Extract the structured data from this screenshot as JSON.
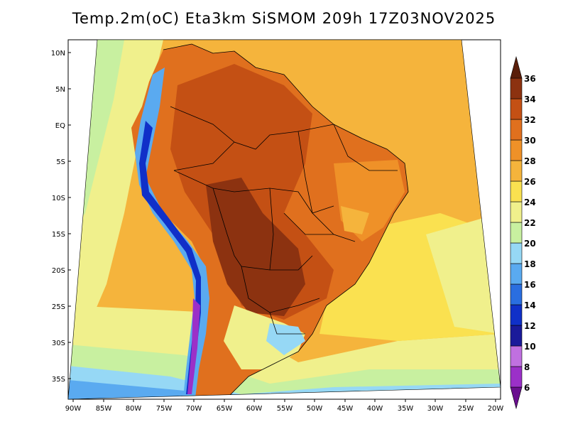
{
  "title": "Temp.2m(oC) Eta3km SiSMOM 209h 17Z03NOV2025",
  "lat_labels": [
    "10N",
    "5N",
    "EQ",
    "5S",
    "10S",
    "15S",
    "20S",
    "25S",
    "30S",
    "35S"
  ],
  "lon_labels": [
    "90W",
    "85W",
    "80W",
    "75W",
    "70W",
    "65W",
    "60W",
    "55W",
    "50W",
    "45W",
    "40W",
    "35W",
    "30W",
    "25W",
    "20W"
  ],
  "colorbar": {
    "labels": [
      "6",
      "8",
      "10",
      "12",
      "14",
      "16",
      "18",
      "20",
      "22",
      "24",
      "26",
      "28",
      "30",
      "32",
      "34",
      "36"
    ],
    "colors": [
      "#6a0f8f",
      "#9b30c8",
      "#c070e0",
      "#1a1a9a",
      "#1030c8",
      "#2a6ee0",
      "#5aaaf0",
      "#96d8f5",
      "#c8f0a0",
      "#f0f08c",
      "#fae150",
      "#f5b43c",
      "#ef9128",
      "#e0701e",
      "#c45014",
      "#8c3210",
      "#5a1e0a"
    ]
  },
  "colors": {
    "ocean_warm": "#f5b43c",
    "ocean_mild": "#fae150",
    "ocean_cool": "#f0f08c",
    "land_hot": "#c45014",
    "land_hotter": "#8c3210",
    "andes": "#1030c8"
  }
}
